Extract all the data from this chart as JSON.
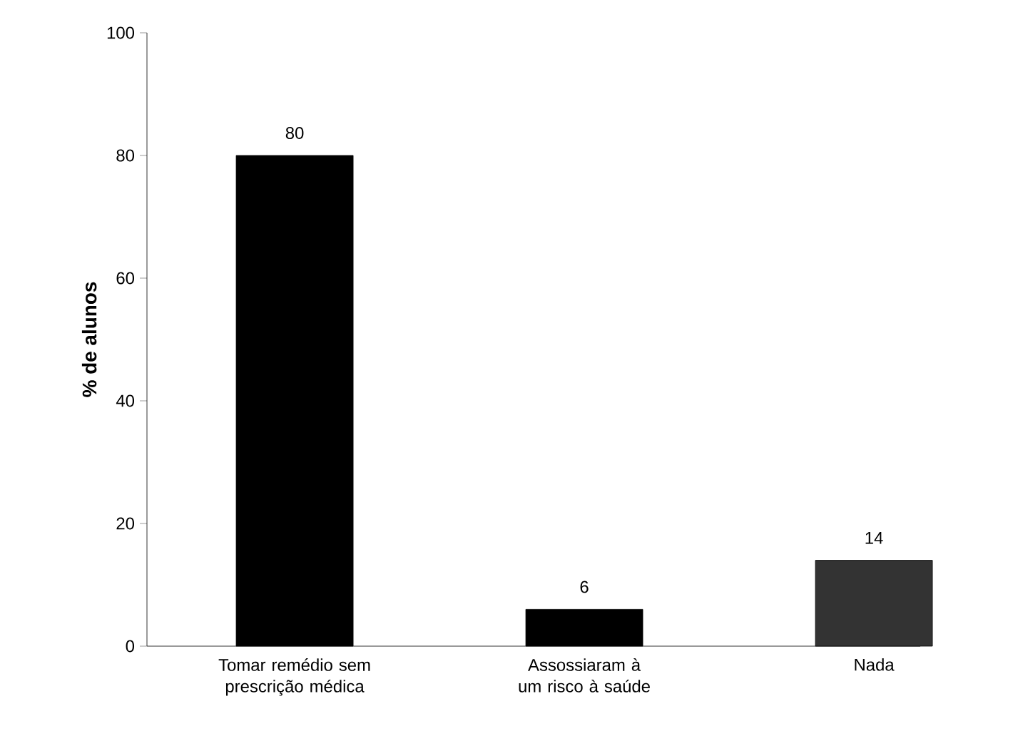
{
  "chart_data": {
    "type": "bar",
    "ylabel": "% de alunos",
    "categories": [
      "Tomar remédio sem prescrição médica",
      "Assossiaram à um risco à saúde",
      "Nada"
    ],
    "values": [
      80,
      6,
      14
    ],
    "colors": [
      "#000000",
      "#000000",
      "#333333"
    ],
    "ylim": [
      0,
      100
    ],
    "yticks": [
      0,
      20,
      40,
      60,
      80,
      100
    ],
    "data_labels": true
  }
}
